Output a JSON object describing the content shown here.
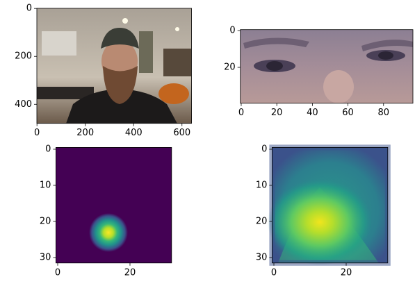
{
  "chart_data": [
    {
      "type": "image",
      "xlim": [
        -0.5,
        639.5
      ],
      "ylim": [
        479.5,
        -0.5
      ],
      "xticks": [
        0,
        200,
        400,
        600
      ],
      "yticks": [
        0,
        200,
        400
      ]
    },
    {
      "type": "image",
      "xlim": [
        -0.5,
        96.5
      ],
      "ylim": [
        39.5,
        -0.5
      ],
      "xticks": [
        0,
        20,
        40,
        60,
        80
      ],
      "yticks": [
        0,
        20
      ]
    },
    {
      "type": "image",
      "xlim": [
        -0.5,
        31.5
      ],
      "ylim": [
        31.5,
        -0.5
      ],
      "xticks": [
        0,
        20
      ],
      "yticks": [
        0,
        10,
        20,
        30
      ]
    },
    {
      "type": "image",
      "xlim": [
        -0.5,
        31.5
      ],
      "ylim": [
        31.5,
        -0.5
      ],
      "xticks": [
        0,
        20
      ],
      "yticks": [
        0,
        10,
        20,
        30
      ]
    }
  ]
}
